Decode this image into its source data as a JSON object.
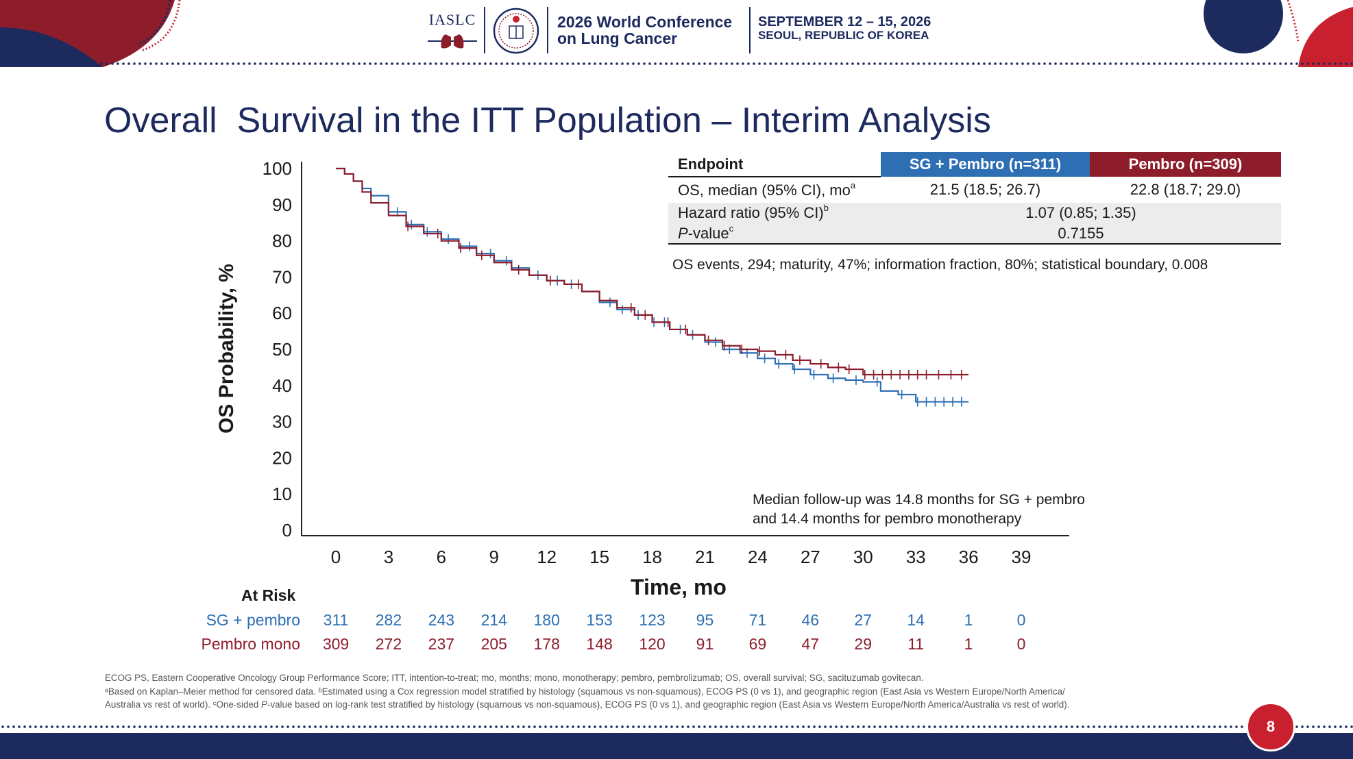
{
  "header": {
    "org_logo_text": "IASLC",
    "conference_line1": "2026 World Conference",
    "conference_line2": "on Lung Cancer",
    "dates": "SEPTEMBER 12 – 15, 2026",
    "location": "SEOUL, REPUBLIC OF KOREA"
  },
  "title": "Overall  Survival in the ITT Population – Interim Analysis",
  "table": {
    "headers": [
      "Endpoint",
      "SG + Pembro (n=311)",
      "Pembro (n=309)"
    ],
    "os_label": "OS, median (95% CI), mo",
    "os_sup": "a",
    "os_sg": "21.5 (18.5; 26.7)",
    "os_pembro": "22.8 (18.7; 29.0)",
    "hr_label": "Hazard ratio (95% CI)",
    "hr_sup": "b",
    "hr_value": "1.07 (0.85; 1.35)",
    "p_label_italic": "P",
    "p_label_rest": "-value",
    "p_sup": "c",
    "p_value": "0.7155"
  },
  "os_events": "OS events, 294; maturity, 47%; information fraction, 80%; statistical boundary, 0.008",
  "followup": {
    "line1": "Median follow-up was 14.8 months for SG + pembro",
    "line2": "and 14.4 months for pembro monotherapy"
  },
  "at_risk": {
    "title": "At Risk",
    "sg_label": "SG + pembro",
    "pembro_label": "Pembro mono"
  },
  "colors": {
    "sg": "#2e6fb3",
    "pembro": "#8e1d2c",
    "navy": "#1c2a5e"
  },
  "chart_data": {
    "type": "line",
    "ylabel": "OS Probability, %",
    "xlabel": "Time, mo",
    "xlim": [
      0,
      39
    ],
    "ylim": [
      0,
      100
    ],
    "x_ticks": [
      0,
      3,
      6,
      9,
      12,
      15,
      18,
      21,
      24,
      27,
      30,
      33,
      36,
      39
    ],
    "y_ticks": [
      0,
      10,
      20,
      30,
      40,
      50,
      60,
      70,
      80,
      90,
      100
    ],
    "series": [
      {
        "name": "SG + pembro",
        "color": "#2e6fb3",
        "x": [
          0,
          0.5,
          1,
          1.5,
          2,
          3,
          4,
          5,
          6,
          7,
          8,
          9,
          10,
          11,
          12,
          13,
          14,
          15,
          16,
          17,
          18,
          19,
          20,
          21,
          22,
          23,
          24,
          25,
          26,
          27,
          28,
          29,
          30,
          31,
          32,
          33,
          34,
          35,
          36
        ],
        "y": [
          100,
          98.5,
          96.5,
          94.5,
          92.5,
          88,
          84.5,
          82.5,
          80.5,
          78.5,
          76.5,
          74.5,
          72.5,
          70.5,
          69,
          68,
          66,
          63,
          61,
          59.5,
          57.5,
          55.5,
          54,
          52,
          50,
          49,
          47.5,
          46,
          44.5,
          43,
          42,
          41.5,
          41,
          38.5,
          37.5,
          35.5,
          35.5,
          35.5,
          35.5
        ],
        "censor_x": [
          3.5,
          4.3,
          5.2,
          6.4,
          7.6,
          8.8,
          9.7,
          11.5,
          12.6,
          13.4,
          15.6,
          16.3,
          17.2,
          18.1,
          18.7,
          19.6,
          20.3,
          21.6,
          22.4,
          23.4,
          24.4,
          25.2,
          26.1,
          27.2,
          28.3,
          29.6,
          30.8,
          32.2,
          33.1,
          33.6,
          34.1,
          34.6,
          35.1,
          35.6
        ]
      },
      {
        "name": "Pembro mono",
        "color": "#8e1d2c",
        "x": [
          0,
          0.5,
          1,
          1.5,
          2,
          3,
          4,
          5,
          6,
          7,
          8,
          9,
          10,
          11,
          12,
          13,
          14,
          15,
          16,
          17,
          18,
          19,
          20,
          21,
          22,
          23,
          24,
          25,
          26,
          27,
          28,
          29,
          30,
          31,
          32,
          33,
          34,
          35,
          36
        ],
        "y": [
          100,
          98.5,
          96.5,
          93.5,
          90.5,
          87,
          84,
          82,
          80,
          78,
          76,
          74,
          72,
          70.5,
          69,
          68,
          66,
          63.5,
          61.5,
          59.5,
          57.5,
          55.5,
          54,
          52.5,
          51,
          50,
          49.5,
          48.5,
          47,
          46,
          45,
          44.5,
          43,
          43,
          43,
          43,
          43,
          43,
          43
        ],
        "censor_x": [
          4.1,
          5.8,
          7.1,
          8.3,
          10.4,
          12.2,
          13.8,
          16.8,
          17.6,
          18.9,
          19.9,
          21.2,
          22.1,
          23.1,
          24.1,
          25.6,
          26.4,
          27.6,
          28.6,
          29.2,
          30.1,
          30.6,
          31.1,
          31.6,
          32.1,
          32.6,
          33.1,
          33.6,
          34.3,
          35.0,
          35.6
        ]
      }
    ],
    "at_risk": {
      "times": [
        0,
        3,
        6,
        9,
        12,
        15,
        18,
        21,
        24,
        27,
        30,
        33,
        36,
        39
      ],
      "sg": [
        311,
        282,
        243,
        214,
        180,
        153,
        123,
        95,
        71,
        46,
        27,
        14,
        1,
        0
      ],
      "pembro": [
        309,
        272,
        237,
        205,
        178,
        148,
        120,
        91,
        69,
        47,
        29,
        11,
        1,
        0
      ]
    }
  },
  "footnotes": {
    "line1": "ECOG PS, Eastern Cooperative Oncology Group Performance Score; ITT, intention-to-treat; mo, months; mono, monotherapy; pembro, pembrolizumab; OS, overall survival; SG, sacituzumab govitecan.",
    "line2": "ᵃBased on Kaplan–Meier method  for censored data. ᵇEstimated using a Cox regression model stratified by histology (squamous vs non-squamous), ECOG PS (0 vs 1), and geographic region (East Asia vs Western Europe/North America/",
    "line3_a": "Australia vs rest of world). ᶜOne-sided ",
    "line3_italic": "P",
    "line3_b": "-value based on log-rank test stratified by histology (squamous vs non-squamous), ECOG PS (0 vs 1), and geographic region (East Asia vs Western Europe/North America/Australia vs rest of world)."
  },
  "page_number": "8"
}
